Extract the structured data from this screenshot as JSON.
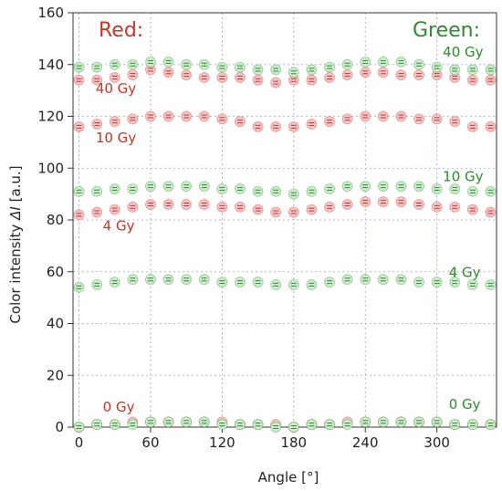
{
  "chart_data": {
    "type": "scatter",
    "xlabel": "Angle [°]",
    "ylabel_prefix": "Color intensity ",
    "ylabel_symbol": "ΔI",
    "ylabel_suffix": " [a.u.]",
    "xlim": [
      -5,
      350
    ],
    "ylim": [
      0,
      160
    ],
    "xticks": [
      0,
      60,
      120,
      180,
      240,
      300
    ],
    "yticks": [
      0,
      20,
      40,
      60,
      80,
      100,
      120,
      140,
      160
    ],
    "grid": true,
    "colors": {
      "red": "#c0392b",
      "red_fill": "#f6c5c9",
      "green": "#2e8b2e",
      "green_fill": "#cfeccf"
    },
    "headers": {
      "red": "Red:",
      "green": "Green:"
    },
    "x": [
      0,
      15,
      30,
      45,
      60,
      75,
      90,
      105,
      120,
      135,
      150,
      165,
      180,
      195,
      210,
      225,
      240,
      255,
      270,
      285,
      300,
      315,
      330,
      345
    ],
    "series": [
      {
        "name": "40 Gy",
        "channel": "red",
        "values": [
          134,
          134,
          135,
          136,
          138,
          137,
          136,
          135,
          135,
          135,
          134,
          133,
          134,
          134,
          135,
          136,
          137,
          137,
          136,
          136,
          136,
          135,
          134,
          134
        ]
      },
      {
        "name": "10 Gy",
        "channel": "red",
        "values": [
          116,
          117,
          118,
          119,
          120,
          120,
          120,
          120,
          119,
          118,
          116,
          116,
          116,
          117,
          118,
          119,
          120,
          120,
          120,
          119,
          119,
          118,
          116,
          116
        ]
      },
      {
        "name": "4 Gy",
        "channel": "red",
        "values": [
          82,
          83,
          84,
          85,
          86,
          86,
          86,
          86,
          85,
          85,
          84,
          83,
          83,
          84,
          85,
          86,
          87,
          87,
          87,
          86,
          85,
          85,
          84,
          83
        ]
      },
      {
        "name": "0 Gy",
        "channel": "red",
        "values": [
          0,
          1,
          1,
          2,
          2,
          2,
          2,
          2,
          2,
          1,
          1,
          1,
          0,
          1,
          1,
          2,
          2,
          2,
          2,
          2,
          2,
          1,
          1,
          1
        ]
      },
      {
        "name": "40 Gy",
        "channel": "green",
        "values": [
          139,
          139,
          140,
          140,
          141,
          141,
          140,
          140,
          139,
          139,
          138,
          138,
          137,
          138,
          139,
          140,
          141,
          141,
          141,
          140,
          139,
          138,
          138,
          138
        ]
      },
      {
        "name": "10 Gy",
        "channel": "green",
        "values": [
          91,
          91,
          92,
          92,
          93,
          93,
          93,
          93,
          92,
          92,
          91,
          91,
          90,
          91,
          92,
          93,
          93,
          93,
          93,
          93,
          92,
          92,
          91,
          91
        ]
      },
      {
        "name": "4 Gy",
        "channel": "green",
        "values": [
          54,
          55,
          56,
          57,
          57,
          57,
          57,
          57,
          56,
          56,
          56,
          55,
          55,
          55,
          56,
          57,
          57,
          57,
          57,
          56,
          56,
          56,
          55,
          55
        ]
      },
      {
        "name": "0 Gy",
        "channel": "green",
        "values": [
          0,
          1,
          1,
          1,
          2,
          2,
          2,
          2,
          1,
          1,
          1,
          0,
          0,
          1,
          1,
          1,
          2,
          2,
          2,
          2,
          2,
          1,
          1,
          1
        ]
      }
    ],
    "annotations": [
      {
        "text": "40 Gy",
        "channel": "red",
        "x": 14,
        "y": 129
      },
      {
        "text": "10 Gy",
        "channel": "red",
        "x": 14,
        "y": 110
      },
      {
        "text": "4 Gy",
        "channel": "red",
        "x": 20,
        "y": 76
      },
      {
        "text": "0 Gy",
        "channel": "red",
        "x": 20,
        "y": 6
      },
      {
        "text": "40 Gy",
        "channel": "green",
        "x": 305,
        "y": 143
      },
      {
        "text": "10 Gy",
        "channel": "green",
        "x": 305,
        "y": 95
      },
      {
        "text": "4 Gy",
        "channel": "green",
        "x": 310,
        "y": 58
      },
      {
        "text": "0 Gy",
        "channel": "green",
        "x": 310,
        "y": 7
      }
    ]
  }
}
